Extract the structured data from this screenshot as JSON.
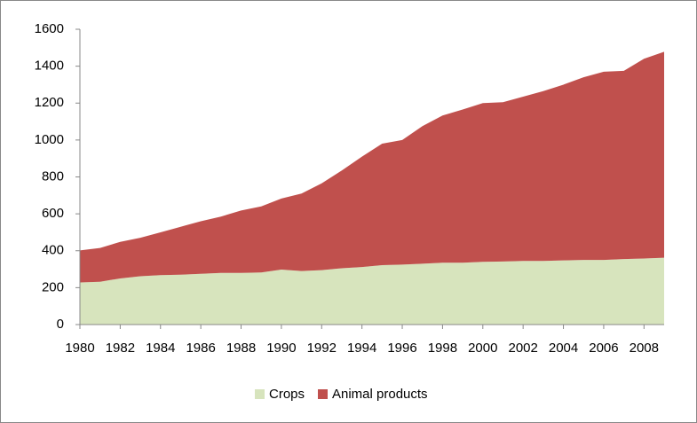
{
  "chart_data": {
    "type": "stacked-area",
    "x": [
      1980,
      1981,
      1982,
      1983,
      1984,
      1985,
      1986,
      1987,
      1988,
      1989,
      1990,
      1991,
      1992,
      1993,
      1994,
      1995,
      1996,
      1997,
      1998,
      1999,
      2000,
      2001,
      2002,
      2003,
      2004,
      2005,
      2006,
      2007,
      2008,
      2009
    ],
    "series": [
      {
        "name": "Crops",
        "color": "#d7e4bd",
        "values": [
          228,
          232,
          250,
          262,
          268,
          270,
          275,
          280,
          280,
          282,
          298,
          290,
          295,
          305,
          312,
          322,
          325,
          330,
          335,
          335,
          340,
          342,
          345,
          345,
          348,
          350,
          350,
          355,
          358,
          362
        ]
      },
      {
        "name": "Animal products",
        "color": "#c0504d",
        "values": [
          174,
          183,
          198,
          208,
          232,
          260,
          285,
          305,
          338,
          358,
          385,
          420,
          470,
          530,
          598,
          658,
          675,
          745,
          798,
          830,
          860,
          863,
          890,
          920,
          952,
          990,
          1020,
          1020,
          1082,
          1116
        ]
      }
    ],
    "xlim": [
      1980,
      2009
    ],
    "xticks": [
      1980,
      1982,
      1984,
      1986,
      1988,
      1990,
      1992,
      1994,
      1996,
      1998,
      2000,
      2002,
      2004,
      2006,
      2008
    ],
    "ylim": [
      0,
      1600
    ],
    "yticks": [
      0,
      200,
      400,
      600,
      800,
      1000,
      1200,
      1400,
      1600
    ],
    "legend": "bottom"
  }
}
